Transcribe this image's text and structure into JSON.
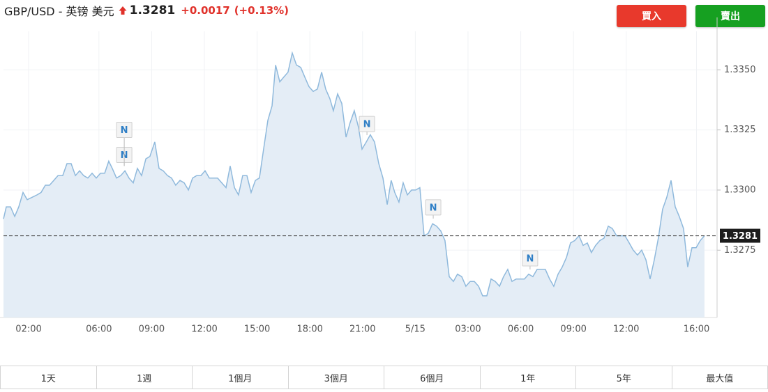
{
  "header": {
    "symbol": "GBP/USD - 英镑 美元",
    "price": "1.3281",
    "change": "+0.0017",
    "change_percent": "(+0.13%)"
  },
  "buttons": {
    "buy": "買入",
    "sell": "賣出"
  },
  "range_tabs": [
    "1天",
    "1週",
    "1個月",
    "3個月",
    "6個月",
    "1年",
    "5年",
    "最大值"
  ],
  "chart_data": {
    "type": "area",
    "color": "#8fb9dc",
    "fill_color": "#e4edf6",
    "grid": true,
    "xlim": [
      0.57,
      41.17
    ],
    "ylim": [
      1.3247,
      1.3366
    ],
    "xticks": [
      {
        "value": 2,
        "label": "02:00"
      },
      {
        "value": 6,
        "label": "06:00"
      },
      {
        "value": 9,
        "label": "09:00"
      },
      {
        "value": 12,
        "label": "12:00"
      },
      {
        "value": 15,
        "label": "15:00"
      },
      {
        "value": 18,
        "label": "18:00"
      },
      {
        "value": 21,
        "label": "21:00"
      },
      {
        "value": 24,
        "label": "5/15"
      },
      {
        "value": 27,
        "label": "03:00"
      },
      {
        "value": 30,
        "label": "06:00"
      },
      {
        "value": 33,
        "label": "09:00"
      },
      {
        "value": 36,
        "label": "12:00"
      },
      {
        "value": 40,
        "label": "16:00"
      }
    ],
    "yticks": [
      {
        "value": 1.3275,
        "label": "1.3275"
      },
      {
        "value": 1.33,
        "label": "1.3300"
      },
      1.3325,
      {
        "value": 1.335,
        "label": "1.3350"
      }
    ],
    "last_value": 1.3281,
    "last_label": "1.3281",
    "annotations": [
      {
        "x": 7.44,
        "label": "N"
      },
      {
        "x": 7.44,
        "label": "N"
      },
      {
        "x": 21.25,
        "label": "N"
      },
      {
        "x": 25.02,
        "label": "N"
      },
      {
        "x": 30.53,
        "label": "N"
      }
    ],
    "x": [
      0.57,
      0.73,
      0.97,
      1.21,
      1.44,
      1.68,
      1.92,
      2.2,
      2.48,
      2.71,
      2.95,
      3.19,
      3.43,
      3.67,
      3.94,
      4.18,
      4.42,
      4.66,
      4.9,
      5.13,
      5.37,
      5.61,
      5.85,
      6.09,
      6.33,
      6.56,
      6.76,
      7.0,
      7.24,
      7.48,
      7.71,
      7.95,
      8.19,
      8.43,
      8.67,
      8.9,
      9.18,
      9.42,
      9.66,
      9.9,
      10.13,
      10.37,
      10.61,
      10.85,
      11.09,
      11.33,
      11.56,
      11.8,
      12.04,
      12.28,
      12.52,
      12.75,
      12.99,
      13.23,
      13.47,
      13.71,
      13.94,
      14.18,
      14.42,
      14.66,
      14.9,
      15.13,
      15.37,
      15.61,
      15.85,
      16.05,
      16.29,
      16.52,
      16.76,
      17.0,
      17.24,
      17.48,
      17.71,
      17.95,
      18.19,
      18.43,
      18.67,
      18.9,
      19.14,
      19.34,
      19.58,
      19.82,
      20.06,
      20.29,
      20.53,
      20.77,
      20.97,
      21.21,
      21.44,
      21.68,
      21.92,
      22.16,
      22.4,
      22.63,
      22.83,
      23.07,
      23.31,
      23.55,
      23.79,
      24.02,
      24.26,
      24.5,
      24.74,
      24.98,
      25.21,
      25.45,
      25.69,
      25.93,
      26.17,
      26.4,
      26.64,
      26.88,
      27.12,
      27.36,
      27.6,
      27.83,
      28.07,
      28.31,
      28.55,
      28.79,
      29.02,
      29.26,
      29.5,
      29.74,
      29.98,
      30.21,
      30.45,
      30.69,
      30.93,
      31.17,
      31.4,
      31.64,
      31.88,
      32.12,
      32.36,
      32.6,
      32.83,
      33.07,
      33.31,
      33.55,
      33.79,
      34.02,
      34.26,
      34.5,
      34.74,
      34.98,
      35.21,
      35.45,
      35.69,
      35.93,
      36.17,
      36.4,
      36.64,
      36.88,
      37.12,
      37.36,
      37.6,
      37.83,
      38.07,
      38.31,
      38.55,
      38.79,
      39.02,
      39.26,
      39.5,
      39.74,
      39.98,
      40.21,
      40.45
    ],
    "values": [
      1.3288,
      1.3293,
      1.3293,
      1.3289,
      1.3293,
      1.3299,
      1.3296,
      1.3297,
      1.3298,
      1.3299,
      1.3302,
      1.3302,
      1.3304,
      1.3306,
      1.3306,
      1.3311,
      1.3311,
      1.3306,
      1.3308,
      1.3306,
      1.3305,
      1.3307,
      1.3305,
      1.3307,
      1.3307,
      1.3312,
      1.3309,
      1.3305,
      1.3306,
      1.3308,
      1.3305,
      1.3303,
      1.3309,
      1.3306,
      1.3313,
      1.3314,
      1.332,
      1.3309,
      1.3308,
      1.3306,
      1.3305,
      1.3302,
      1.3304,
      1.3303,
      1.33,
      1.3305,
      1.3306,
      1.3306,
      1.3308,
      1.3305,
      1.3305,
      1.3305,
      1.3303,
      1.3301,
      1.331,
      1.3301,
      1.3298,
      1.3306,
      1.3306,
      1.3299,
      1.3304,
      1.3305,
      1.3317,
      1.3329,
      1.3335,
      1.3352,
      1.3345,
      1.3347,
      1.3349,
      1.3357,
      1.3352,
      1.3351,
      1.3347,
      1.3343,
      1.3341,
      1.3342,
      1.3349,
      1.3342,
      1.3338,
      1.3333,
      1.334,
      1.3336,
      1.3322,
      1.3328,
      1.3333,
      1.3326,
      1.3317,
      1.332,
      1.3323,
      1.332,
      1.3311,
      1.3305,
      1.3294,
      1.3304,
      1.3299,
      1.3295,
      1.3303,
      1.3298,
      1.33,
      1.33,
      1.3301,
      1.3281,
      1.3282,
      1.3286,
      1.3285,
      1.3283,
      1.3279,
      1.3264,
      1.3262,
      1.3265,
      1.3264,
      1.326,
      1.3262,
      1.3262,
      1.326,
      1.3256,
      1.3256,
      1.3263,
      1.3262,
      1.326,
      1.3264,
      1.3267,
      1.3262,
      1.3263,
      1.3263,
      1.3263,
      1.3265,
      1.3264,
      1.3267,
      1.3267,
      1.3267,
      1.3263,
      1.326,
      1.3265,
      1.3268,
      1.3272,
      1.3278,
      1.3279,
      1.3281,
      1.3277,
      1.3278,
      1.3274,
      1.3277,
      1.3279,
      1.328,
      1.3285,
      1.3284,
      1.3281,
      1.3281,
      1.3281,
      1.3278,
      1.3275,
      1.3273,
      1.3275,
      1.3271,
      1.3263,
      1.3271,
      1.328,
      1.3292,
      1.3297,
      1.3304,
      1.3293,
      1.3289,
      1.3284,
      1.3268,
      1.3276,
      1.3276,
      1.3279,
      1.3281
    ]
  }
}
